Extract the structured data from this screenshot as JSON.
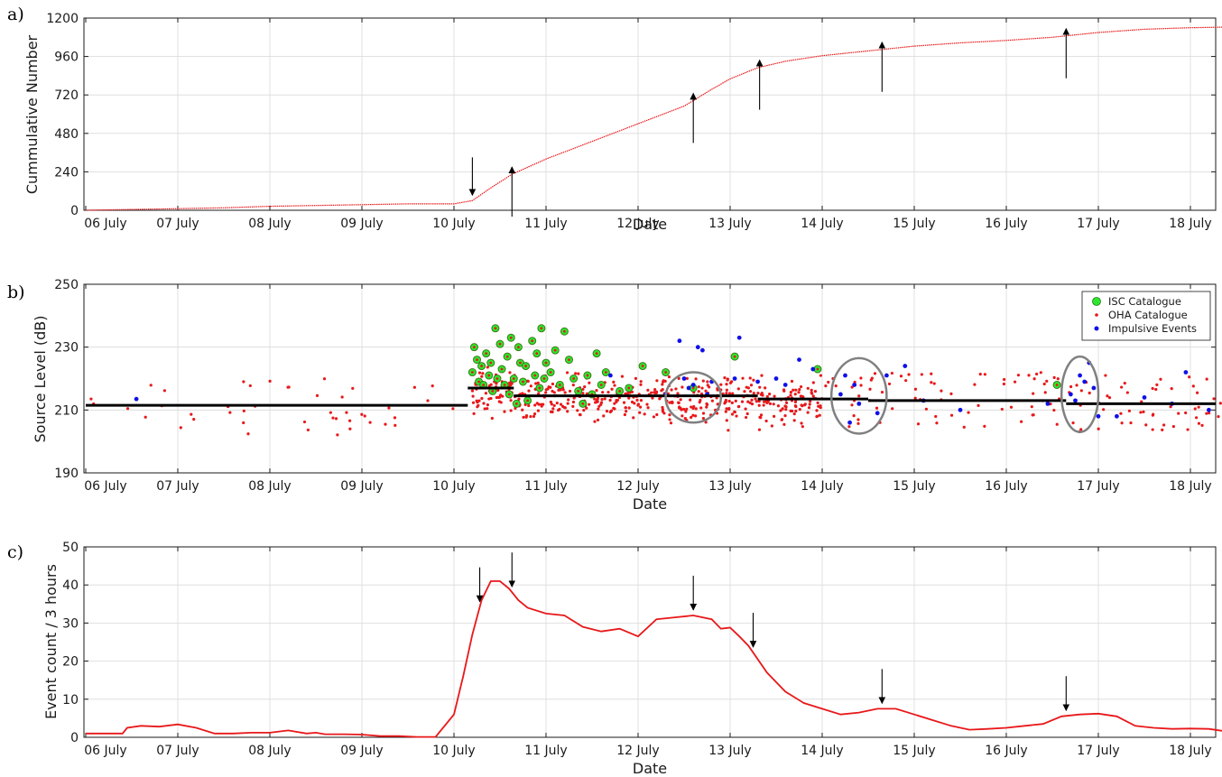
{
  "panels": [
    {
      "label": "a)",
      "ylabel": "Cummulative Number",
      "xlabel": "Date"
    },
    {
      "label": "b)",
      "ylabel": "Source Level (dB)",
      "xlabel": "Date"
    },
    {
      "label": "c)",
      "ylabel": "Event count / 3 hours",
      "xlabel": "Date"
    }
  ],
  "x_tick_labels": [
    "06 July",
    "07 July",
    "08 July",
    "09 July",
    "10 July",
    "11 July",
    "12 July",
    "13 July",
    "14 July",
    "15 July",
    "16 July",
    "17 July",
    "18 July"
  ],
  "colors": {
    "red": "#e8181a",
    "green": "#2ee62e",
    "blue": "#1010e8",
    "black": "#000000",
    "gray": "#808080"
  },
  "chart_data": [
    {
      "type": "line",
      "panel": "a",
      "title": "",
      "xlabel": "Date",
      "ylabel": "Cummulative Number",
      "xlim": [
        "06 July",
        "18.6 July"
      ],
      "ylim": [
        0,
        1200
      ],
      "yticks": [
        0,
        240,
        480,
        720,
        960,
        1200
      ],
      "series": [
        {
          "x_days": [
            6.0,
            6.5,
            7.0,
            7.5,
            8.0,
            8.5,
            9.0,
            9.5,
            10.0,
            10.2,
            10.4,
            10.63,
            11.0,
            11.5,
            12.0,
            12.5,
            12.8,
            13.0,
            13.3,
            13.6,
            14.0,
            14.5,
            15.0,
            15.5,
            16.0,
            16.5,
            17.0,
            17.5,
            18.0,
            18.5
          ],
          "y": [
            0,
            5,
            10,
            15,
            25,
            30,
            35,
            40,
            40,
            60,
            140,
            225,
            320,
            430,
            540,
            650,
            755,
            820,
            890,
            930,
            965,
            995,
            1025,
            1045,
            1060,
            1080,
            1110,
            1130,
            1140,
            1145
          ]
        }
      ],
      "arrows_up_days": [
        10.63,
        12.6,
        13.32,
        14.65,
        16.65
      ],
      "arrows_down_days": [
        10.2
      ]
    },
    {
      "type": "scatter",
      "panel": "b",
      "title": "",
      "xlabel": "Date",
      "ylabel": "Source Level (dB)",
      "xlim": [
        "06 July",
        "18.6 July"
      ],
      "ylim": [
        190,
        250
      ],
      "yticks": [
        190,
        210,
        230,
        250
      ],
      "legend": {
        "position": "top-right",
        "entries": [
          "ISC Catalogue",
          "OHA Catalogue",
          "Impulsive Events"
        ]
      },
      "mean_levels": [
        {
          "x_start": 6.0,
          "x_end": 10.15,
          "y": 211.5
        },
        {
          "x_start": 10.15,
          "x_end": 10.65,
          "y": 217
        },
        {
          "x_start": 10.65,
          "x_end": 13.3,
          "y": 214.5
        },
        {
          "x_start": 13.3,
          "x_end": 14.5,
          "y": 213.5
        },
        {
          "x_start": 14.5,
          "x_end": 16.65,
          "y": 213
        },
        {
          "x_start": 16.65,
          "x_end": 18.6,
          "y": 212
        }
      ],
      "circled_regions": [
        {
          "x_center": 12.6,
          "y_center": 214,
          "rx_days": 0.3,
          "ry_db": 8
        },
        {
          "x_center": 14.4,
          "y_center": 214.5,
          "rx_days": 0.3,
          "ry_db": 12
        },
        {
          "x_center": 16.8,
          "y_center": 215,
          "rx_days": 0.2,
          "ry_db": 12
        }
      ],
      "isc_points": [
        [
          10.2,
          222
        ],
        [
          10.22,
          230
        ],
        [
          10.25,
          226
        ],
        [
          10.27,
          219
        ],
        [
          10.3,
          224
        ],
        [
          10.32,
          218
        ],
        [
          10.35,
          228
        ],
        [
          10.38,
          221
        ],
        [
          10.4,
          225
        ],
        [
          10.42,
          216
        ],
        [
          10.45,
          236
        ],
        [
          10.47,
          220
        ],
        [
          10.5,
          231
        ],
        [
          10.52,
          223
        ],
        [
          10.55,
          218
        ],
        [
          10.58,
          227
        ],
        [
          10.6,
          215
        ],
        [
          10.62,
          233
        ],
        [
          10.65,
          220
        ],
        [
          10.68,
          212
        ],
        [
          10.7,
          230
        ],
        [
          10.72,
          225
        ],
        [
          10.75,
          219
        ],
        [
          10.78,
          224
        ],
        [
          10.8,
          213
        ],
        [
          10.85,
          232
        ],
        [
          10.88,
          221
        ],
        [
          10.9,
          228
        ],
        [
          10.93,
          217
        ],
        [
          10.95,
          236
        ],
        [
          10.98,
          220
        ],
        [
          11.0,
          225
        ],
        [
          11.05,
          222
        ],
        [
          11.1,
          229
        ],
        [
          11.15,
          218
        ],
        [
          11.2,
          235
        ],
        [
          11.25,
          226
        ],
        [
          11.3,
          220
        ],
        [
          11.35,
          216
        ],
        [
          11.4,
          212
        ],
        [
          11.45,
          221
        ],
        [
          11.5,
          215
        ],
        [
          11.55,
          228
        ],
        [
          11.6,
          218
        ],
        [
          11.65,
          222
        ],
        [
          11.8,
          216
        ],
        [
          11.9,
          217
        ],
        [
          12.05,
          224
        ],
        [
          12.3,
          222
        ],
        [
          12.6,
          217
        ],
        [
          13.05,
          227
        ],
        [
          13.95,
          223
        ],
        [
          16.55,
          218
        ]
      ],
      "oha_points_note": "dense scatter around the mean levels, roughly 205-222 dB between 10.2 and 14 July; sparse 200-225 dB elsewhere",
      "blue_points": [
        [
          6.55,
          213.5
        ],
        [
          11.7,
          221
        ],
        [
          12.3,
          215
        ],
        [
          12.45,
          232
        ],
        [
          12.5,
          220
        ],
        [
          12.55,
          217
        ],
        [
          12.6,
          218
        ],
        [
          12.65,
          230
        ],
        [
          12.7,
          229
        ],
        [
          12.75,
          215
        ],
        [
          12.8,
          219
        ],
        [
          13.05,
          220
        ],
        [
          13.1,
          233
        ],
        [
          13.3,
          219
        ],
        [
          13.5,
          220
        ],
        [
          13.6,
          218
        ],
        [
          13.75,
          226
        ],
        [
          13.9,
          223
        ],
        [
          14.2,
          215
        ],
        [
          14.25,
          221
        ],
        [
          14.3,
          206
        ],
        [
          14.35,
          218
        ],
        [
          14.4,
          212
        ],
        [
          14.6,
          209
        ],
        [
          14.7,
          221
        ],
        [
          14.9,
          224
        ],
        [
          15.1,
          213
        ],
        [
          15.5,
          210
        ],
        [
          16.45,
          212
        ],
        [
          16.7,
          215
        ],
        [
          16.75,
          213
        ],
        [
          16.8,
          221
        ],
        [
          16.85,
          219
        ],
        [
          16.9,
          225
        ],
        [
          16.95,
          217
        ],
        [
          17.0,
          208
        ],
        [
          17.2,
          208
        ],
        [
          17.5,
          214
        ],
        [
          17.8,
          212
        ],
        [
          17.95,
          222
        ],
        [
          18.2,
          210
        ],
        [
          18.5,
          219
        ]
      ]
    },
    {
      "type": "line",
      "panel": "c",
      "title": "",
      "xlabel": "Date",
      "ylabel": "Event count / 3 hours",
      "xlim": [
        "06 July",
        "18.6 July"
      ],
      "ylim": [
        0,
        50
      ],
      "yticks": [
        0,
        10,
        20,
        30,
        40,
        50
      ],
      "series": [
        {
          "x_days": [
            6.0,
            6.4,
            6.45,
            6.6,
            6.8,
            7.0,
            7.2,
            7.4,
            7.6,
            7.8,
            8.0,
            8.2,
            8.4,
            8.5,
            8.6,
            8.8,
            9.0,
            9.2,
            9.4,
            9.6,
            9.8,
            10.0,
            10.1,
            10.2,
            10.3,
            10.4,
            10.5,
            10.6,
            10.7,
            10.8,
            11.0,
            11.2,
            11.4,
            11.6,
            11.8,
            12.0,
            12.2,
            12.4,
            12.6,
            12.8,
            12.9,
            13.0,
            13.1,
            13.2,
            13.4,
            13.6,
            13.8,
            14.0,
            14.2,
            14.4,
            14.6,
            14.8,
            15.0,
            15.2,
            15.4,
            15.6,
            15.8,
            16.0,
            16.2,
            16.4,
            16.6,
            16.8,
            17.0,
            17.2,
            17.4,
            17.6,
            17.8,
            18.0,
            18.2,
            18.4,
            18.6
          ],
          "y": [
            1,
            1,
            2.5,
            3,
            2.8,
            3.4,
            2.5,
            1,
            1,
            1.2,
            1.2,
            1.8,
            1,
            1.2,
            0.8,
            0.8,
            0.7,
            0.3,
            0.3,
            0.1,
            0.1,
            6,
            16,
            27,
            36,
            41,
            41,
            39,
            36,
            34,
            32.5,
            32,
            29,
            27.8,
            28.5,
            26.5,
            31,
            31.5,
            32,
            31,
            28.5,
            28.8,
            26.5,
            24,
            17,
            12,
            9,
            7.5,
            6,
            6.5,
            7.5,
            7.5,
            6,
            4.5,
            3,
            2,
            2.2,
            2.5,
            3,
            3.5,
            5.5,
            6,
            6.2,
            5.5,
            3,
            2.5,
            2.2,
            2.3,
            2.2,
            1.5,
            0
          ]
        }
      ],
      "arrows_down_days": [
        10.28,
        10.63,
        12.6,
        13.25,
        14.65,
        16.65
      ]
    }
  ]
}
